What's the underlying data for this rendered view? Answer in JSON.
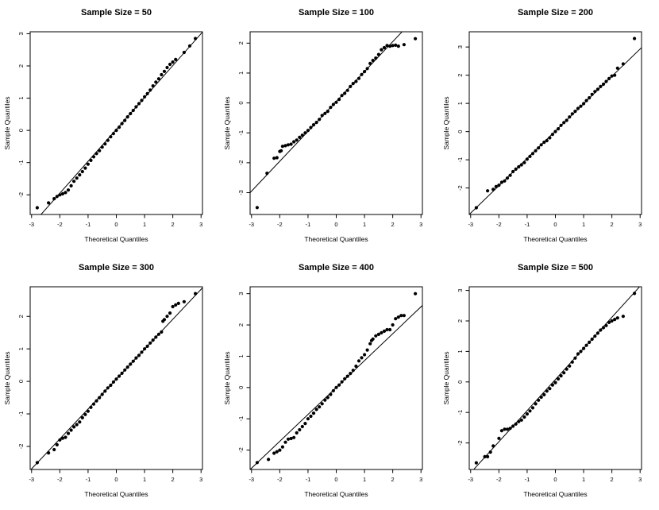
{
  "page": {
    "background_color": "#ffffff",
    "point_color": "#000000",
    "line_color": "#000000",
    "frame_color": "#000000"
  },
  "chart_data": [
    {
      "type": "scatter",
      "title": "Sample Size = 50",
      "xlabel": "Theoretical Quantiles",
      "ylabel": "Sample Quantiles",
      "xlim": [
        -3.05,
        3.05
      ],
      "ylim": [
        -2.61,
        3.06
      ],
      "xticks": [
        -3,
        -2,
        -1,
        0,
        1,
        2,
        3
      ],
      "yticks": [
        -2,
        -1,
        0,
        1,
        2,
        3
      ],
      "grid": false,
      "legend": "none",
      "line": {
        "slope": 0.99,
        "intercept": 0.03
      },
      "points": [
        [
          -2.8,
          -2.4
        ],
        [
          -2.4,
          -2.25
        ],
        [
          -2.2,
          -2.12
        ],
        [
          -2.1,
          -2.05
        ],
        [
          -2.0,
          -2.0
        ],
        [
          -1.9,
          -1.97
        ],
        [
          -1.8,
          -1.93
        ],
        [
          -1.7,
          -1.85
        ],
        [
          -1.6,
          -1.72
        ],
        [
          -1.5,
          -1.58
        ],
        [
          -1.4,
          -1.48
        ],
        [
          -1.3,
          -1.38
        ],
        [
          -1.2,
          -1.28
        ],
        [
          -1.1,
          -1.17
        ],
        [
          -1.0,
          -1.05
        ],
        [
          -0.9,
          -0.93
        ],
        [
          -0.8,
          -0.82
        ],
        [
          -0.7,
          -0.72
        ],
        [
          -0.6,
          -0.63
        ],
        [
          -0.5,
          -0.52
        ],
        [
          -0.4,
          -0.42
        ],
        [
          -0.3,
          -0.31
        ],
        [
          -0.2,
          -0.2
        ],
        [
          -0.1,
          -0.1
        ],
        [
          0,
          0
        ],
        [
          0.1,
          0.1
        ],
        [
          0.2,
          0.21
        ],
        [
          0.3,
          0.31
        ],
        [
          0.4,
          0.42
        ],
        [
          0.5,
          0.52
        ],
        [
          0.6,
          0.62
        ],
        [
          0.7,
          0.73
        ],
        [
          0.8,
          0.83
        ],
        [
          0.9,
          0.93
        ],
        [
          1.0,
          1.04
        ],
        [
          1.1,
          1.14
        ],
        [
          1.2,
          1.25
        ],
        [
          1.3,
          1.38
        ],
        [
          1.4,
          1.5
        ],
        [
          1.5,
          1.6
        ],
        [
          1.6,
          1.73
        ],
        [
          1.7,
          1.83
        ],
        [
          1.8,
          1.95
        ],
        [
          1.9,
          2.05
        ],
        [
          2.0,
          2.12
        ],
        [
          2.1,
          2.2
        ],
        [
          2.4,
          2.42
        ],
        [
          2.6,
          2.62
        ],
        [
          2.8,
          2.85
        ]
      ]
    },
    {
      "type": "scatter",
      "title": "Sample Size = 100",
      "xlabel": "Theoretical Quantiles",
      "ylabel": "Sample Quantiles",
      "xlim": [
        -3.05,
        3.05
      ],
      "ylim": [
        -3.73,
        2.38
      ],
      "xticks": [
        -3,
        -2,
        -1,
        0,
        1,
        2,
        3
      ],
      "yticks": [
        -3,
        -2,
        -1,
        0,
        1,
        2
      ],
      "grid": false,
      "legend": "none",
      "line": {
        "slope": 1.0,
        "intercept": 0.05
      },
      "points": [
        [
          -2.8,
          -3.5
        ],
        [
          -2.45,
          -2.35
        ],
        [
          -2.2,
          -1.85
        ],
        [
          -2.1,
          -1.83
        ],
        [
          -2.0,
          -1.62
        ],
        [
          -1.95,
          -1.6
        ],
        [
          -1.9,
          -1.45
        ],
        [
          -1.8,
          -1.43
        ],
        [
          -1.7,
          -1.4
        ],
        [
          -1.6,
          -1.38
        ],
        [
          -1.5,
          -1.3
        ],
        [
          -1.4,
          -1.24
        ],
        [
          -1.3,
          -1.15
        ],
        [
          -1.2,
          -1.08
        ],
        [
          -1.1,
          -1.0
        ],
        [
          -1.0,
          -0.92
        ],
        [
          -0.9,
          -0.82
        ],
        [
          -0.8,
          -0.73
        ],
        [
          -0.7,
          -0.65
        ],
        [
          -0.6,
          -0.55
        ],
        [
          -0.5,
          -0.42
        ],
        [
          -0.4,
          -0.35
        ],
        [
          -0.3,
          -0.28
        ],
        [
          -0.2,
          -0.15
        ],
        [
          -0.1,
          -0.05
        ],
        [
          0,
          0.02
        ],
        [
          0.1,
          0.12
        ],
        [
          0.2,
          0.25
        ],
        [
          0.3,
          0.32
        ],
        [
          0.4,
          0.42
        ],
        [
          0.5,
          0.55
        ],
        [
          0.6,
          0.65
        ],
        [
          0.7,
          0.72
        ],
        [
          0.8,
          0.82
        ],
        [
          0.9,
          0.95
        ],
        [
          1.0,
          1.05
        ],
        [
          1.1,
          1.15
        ],
        [
          1.2,
          1.32
        ],
        [
          1.3,
          1.42
        ],
        [
          1.4,
          1.5
        ],
        [
          1.5,
          1.62
        ],
        [
          1.6,
          1.78
        ],
        [
          1.7,
          1.85
        ],
        [
          1.8,
          1.92
        ],
        [
          1.9,
          1.9
        ],
        [
          2.0,
          1.92
        ],
        [
          2.1,
          1.93
        ],
        [
          2.2,
          1.9
        ],
        [
          2.4,
          1.95
        ],
        [
          2.8,
          2.15
        ]
      ]
    },
    {
      "type": "scatter",
      "title": "Sample Size = 200",
      "xlabel": "Theoretical Quantiles",
      "ylabel": "Sample Quantiles",
      "xlim": [
        -3.05,
        3.05
      ],
      "ylim": [
        -2.94,
        3.54
      ],
      "xticks": [
        -3,
        -2,
        -1,
        0,
        1,
        2,
        3
      ],
      "yticks": [
        -2,
        -1,
        0,
        1,
        2,
        3
      ],
      "grid": false,
      "legend": "none",
      "line": {
        "slope": 0.97,
        "intercept": 0.02
      },
      "points": [
        [
          -2.8,
          -2.7
        ],
        [
          -2.4,
          -2.1
        ],
        [
          -2.2,
          -2.05
        ],
        [
          -2.1,
          -1.95
        ],
        [
          -2.0,
          -1.9
        ],
        [
          -1.9,
          -1.8
        ],
        [
          -1.8,
          -1.75
        ],
        [
          -1.7,
          -1.65
        ],
        [
          -1.6,
          -1.55
        ],
        [
          -1.5,
          -1.42
        ],
        [
          -1.4,
          -1.33
        ],
        [
          -1.3,
          -1.25
        ],
        [
          -1.2,
          -1.18
        ],
        [
          -1.1,
          -1.1
        ],
        [
          -1.0,
          -0.98
        ],
        [
          -0.9,
          -0.88
        ],
        [
          -0.8,
          -0.78
        ],
        [
          -0.7,
          -0.68
        ],
        [
          -0.6,
          -0.58
        ],
        [
          -0.5,
          -0.47
        ],
        [
          -0.4,
          -0.38
        ],
        [
          -0.3,
          -0.32
        ],
        [
          -0.2,
          -0.22
        ],
        [
          -0.1,
          -0.1
        ],
        [
          0,
          0
        ],
        [
          0.1,
          0.1
        ],
        [
          0.2,
          0.22
        ],
        [
          0.3,
          0.32
        ],
        [
          0.4,
          0.4
        ],
        [
          0.5,
          0.52
        ],
        [
          0.6,
          0.63
        ],
        [
          0.7,
          0.72
        ],
        [
          0.8,
          0.82
        ],
        [
          0.9,
          0.9
        ],
        [
          1.0,
          0.99
        ],
        [
          1.1,
          1.1
        ],
        [
          1.2,
          1.2
        ],
        [
          1.3,
          1.32
        ],
        [
          1.4,
          1.42
        ],
        [
          1.5,
          1.5
        ],
        [
          1.6,
          1.6
        ],
        [
          1.7,
          1.68
        ],
        [
          1.8,
          1.78
        ],
        [
          1.9,
          1.88
        ],
        [
          2.0,
          1.97
        ],
        [
          2.1,
          2.0
        ],
        [
          2.2,
          2.25
        ],
        [
          2.4,
          2.4
        ],
        [
          2.8,
          3.3
        ]
      ]
    },
    {
      "type": "scatter",
      "title": "Sample Size = 300",
      "xlabel": "Theoretical Quantiles",
      "ylabel": "Sample Quantiles",
      "xlim": [
        -3.05,
        3.05
      ],
      "ylim": [
        -2.71,
        2.91
      ],
      "xticks": [
        -3,
        -2,
        -1,
        0,
        1,
        2,
        3
      ],
      "yticks": [
        -2,
        -1,
        0,
        1,
        2
      ],
      "grid": false,
      "legend": "none",
      "line": {
        "slope": 0.92,
        "intercept": 0.07
      },
      "points": [
        [
          -2.8,
          -2.5
        ],
        [
          -2.4,
          -2.2
        ],
        [
          -2.2,
          -2.1
        ],
        [
          -2.1,
          -1.95
        ],
        [
          -2.0,
          -1.8
        ],
        [
          -1.9,
          -1.75
        ],
        [
          -1.8,
          -1.72
        ],
        [
          -1.7,
          -1.6
        ],
        [
          -1.6,
          -1.5
        ],
        [
          -1.5,
          -1.4
        ],
        [
          -1.4,
          -1.33
        ],
        [
          -1.3,
          -1.25
        ],
        [
          -1.2,
          -1.12
        ],
        [
          -1.1,
          -1.02
        ],
        [
          -1.0,
          -0.92
        ],
        [
          -0.9,
          -0.8
        ],
        [
          -0.8,
          -0.7
        ],
        [
          -0.7,
          -0.6
        ],
        [
          -0.6,
          -0.5
        ],
        [
          -0.5,
          -0.4
        ],
        [
          -0.4,
          -0.3
        ],
        [
          -0.3,
          -0.2
        ],
        [
          -0.2,
          -0.12
        ],
        [
          -0.1,
          -0.02
        ],
        [
          0,
          0.07
        ],
        [
          0.1,
          0.16
        ],
        [
          0.2,
          0.25
        ],
        [
          0.3,
          0.35
        ],
        [
          0.4,
          0.44
        ],
        [
          0.5,
          0.53
        ],
        [
          0.6,
          0.62
        ],
        [
          0.7,
          0.72
        ],
        [
          0.8,
          0.8
        ],
        [
          0.9,
          0.9
        ],
        [
          1.0,
          1.0
        ],
        [
          1.1,
          1.08
        ],
        [
          1.2,
          1.18
        ],
        [
          1.3,
          1.27
        ],
        [
          1.4,
          1.36
        ],
        [
          1.5,
          1.45
        ],
        [
          1.6,
          1.52
        ],
        [
          1.65,
          1.85
        ],
        [
          1.7,
          1.9
        ],
        [
          1.8,
          2.0
        ],
        [
          1.9,
          2.1
        ],
        [
          2.0,
          2.3
        ],
        [
          2.1,
          2.35
        ],
        [
          2.2,
          2.4
        ],
        [
          2.4,
          2.45
        ],
        [
          2.8,
          2.7
        ]
      ]
    },
    {
      "type": "scatter",
      "title": "Sample Size = 400",
      "xlabel": "Theoretical Quantiles",
      "ylabel": "Sample Quantiles",
      "xlim": [
        -3.05,
        3.05
      ],
      "ylim": [
        -2.62,
        3.22
      ],
      "xticks": [
        -3,
        -2,
        -1,
        0,
        1,
        2,
        3
      ],
      "yticks": [
        -2,
        -1,
        0,
        1,
        2,
        3
      ],
      "grid": false,
      "legend": "none",
      "line": {
        "slope": 0.86,
        "intercept": 0.0
      },
      "points": [
        [
          -2.8,
          -2.4
        ],
        [
          -2.4,
          -2.3
        ],
        [
          -2.2,
          -2.1
        ],
        [
          -2.1,
          -2.05
        ],
        [
          -2.0,
          -2.0
        ],
        [
          -1.9,
          -1.9
        ],
        [
          -1.8,
          -1.75
        ],
        [
          -1.7,
          -1.65
        ],
        [
          -1.6,
          -1.63
        ],
        [
          -1.5,
          -1.6
        ],
        [
          -1.4,
          -1.45
        ],
        [
          -1.3,
          -1.35
        ],
        [
          -1.2,
          -1.25
        ],
        [
          -1.1,
          -1.15
        ],
        [
          -1.0,
          -1.0
        ],
        [
          -0.9,
          -0.92
        ],
        [
          -0.8,
          -0.82
        ],
        [
          -0.7,
          -0.7
        ],
        [
          -0.6,
          -0.62
        ],
        [
          -0.5,
          -0.52
        ],
        [
          -0.4,
          -0.4
        ],
        [
          -0.3,
          -0.32
        ],
        [
          -0.2,
          -0.22
        ],
        [
          -0.1,
          -0.1
        ],
        [
          0,
          0
        ],
        [
          0.1,
          0.08
        ],
        [
          0.2,
          0.18
        ],
        [
          0.3,
          0.28
        ],
        [
          0.4,
          0.36
        ],
        [
          0.5,
          0.45
        ],
        [
          0.6,
          0.55
        ],
        [
          0.7,
          0.68
        ],
        [
          0.8,
          0.85
        ],
        [
          0.9,
          0.95
        ],
        [
          1.0,
          1.05
        ],
        [
          1.1,
          1.2
        ],
        [
          1.2,
          1.4
        ],
        [
          1.25,
          1.5
        ],
        [
          1.3,
          1.55
        ],
        [
          1.4,
          1.65
        ],
        [
          1.5,
          1.7
        ],
        [
          1.6,
          1.75
        ],
        [
          1.7,
          1.8
        ],
        [
          1.8,
          1.85
        ],
        [
          1.9,
          1.85
        ],
        [
          2.0,
          2.0
        ],
        [
          2.1,
          2.2
        ],
        [
          2.2,
          2.25
        ],
        [
          2.3,
          2.3
        ],
        [
          2.4,
          2.3
        ],
        [
          2.8,
          3.0
        ]
      ]
    },
    {
      "type": "scatter",
      "title": "Sample Size = 500",
      "xlabel": "Theoretical Quantiles",
      "ylabel": "Sample Quantiles",
      "xlim": [
        -3.05,
        3.05
      ],
      "ylim": [
        -2.87,
        3.12
      ],
      "xticks": [
        -3,
        -2,
        -1,
        0,
        1,
        2,
        3
      ],
      "yticks": [
        -2,
        -1,
        0,
        1,
        2,
        3
      ],
      "grid": false,
      "legend": "none",
      "line": {
        "slope": 1.02,
        "intercept": 0.08
      },
      "points": [
        [
          -2.8,
          -2.65
        ],
        [
          -2.5,
          -2.45
        ],
        [
          -2.4,
          -2.45
        ],
        [
          -2.3,
          -2.3
        ],
        [
          -2.2,
          -2.1
        ],
        [
          -2.0,
          -1.85
        ],
        [
          -1.9,
          -1.6
        ],
        [
          -1.8,
          -1.55
        ],
        [
          -1.7,
          -1.55
        ],
        [
          -1.6,
          -1.52
        ],
        [
          -1.5,
          -1.45
        ],
        [
          -1.4,
          -1.38
        ],
        [
          -1.3,
          -1.3
        ],
        [
          -1.2,
          -1.25
        ],
        [
          -1.1,
          -1.15
        ],
        [
          -1.0,
          -1.05
        ],
        [
          -0.9,
          -0.95
        ],
        [
          -0.8,
          -0.85
        ],
        [
          -0.7,
          -0.72
        ],
        [
          -0.6,
          -0.6
        ],
        [
          -0.5,
          -0.5
        ],
        [
          -0.4,
          -0.42
        ],
        [
          -0.3,
          -0.3
        ],
        [
          -0.2,
          -0.22
        ],
        [
          -0.1,
          -0.1
        ],
        [
          0,
          -0.02
        ],
        [
          0.1,
          0.1
        ],
        [
          0.2,
          0.2
        ],
        [
          0.3,
          0.3
        ],
        [
          0.4,
          0.42
        ],
        [
          0.5,
          0.52
        ],
        [
          0.6,
          0.65
        ],
        [
          0.7,
          0.78
        ],
        [
          0.8,
          0.92
        ],
        [
          0.9,
          1.0
        ],
        [
          1.0,
          1.1
        ],
        [
          1.1,
          1.2
        ],
        [
          1.2,
          1.3
        ],
        [
          1.3,
          1.4
        ],
        [
          1.4,
          1.5
        ],
        [
          1.5,
          1.6
        ],
        [
          1.6,
          1.7
        ],
        [
          1.7,
          1.78
        ],
        [
          1.8,
          1.85
        ],
        [
          1.9,
          1.95
        ],
        [
          2.0,
          2.0
        ],
        [
          2.1,
          2.05
        ],
        [
          2.2,
          2.1
        ],
        [
          2.4,
          2.15
        ],
        [
          2.8,
          2.9
        ]
      ]
    }
  ]
}
